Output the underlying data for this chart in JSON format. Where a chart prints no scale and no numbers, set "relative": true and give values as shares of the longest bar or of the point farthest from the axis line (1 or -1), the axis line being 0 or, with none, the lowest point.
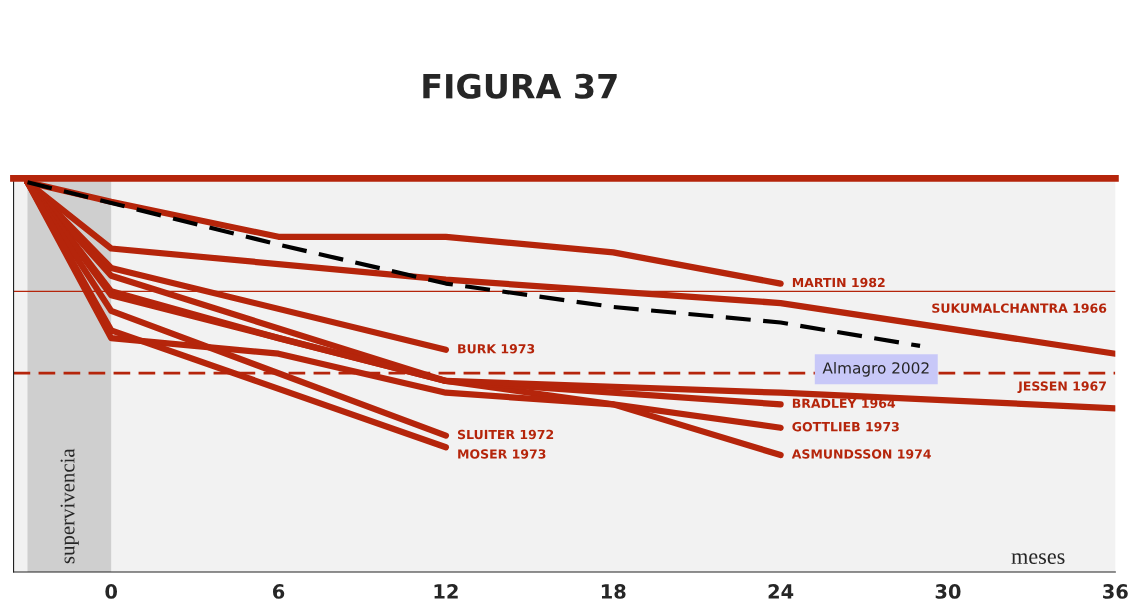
{
  "chart_data": {
    "type": "line",
    "title": "FIGURA 37",
    "xlabel": "meses",
    "relative": true,
    "xlim": [
      -3.5,
      36
    ],
    "xticks": [
      0,
      6,
      12,
      18,
      24,
      30,
      36
    ],
    "grid": false,
    "line_style": "solid",
    "bands": [
      {
        "axis": "x",
        "from": -3,
        "to": 0,
        "label": "supervivencia",
        "color": "#cfcfcf"
      }
    ],
    "ref_lines": [
      {
        "axis": "y",
        "value": 0.72,
        "color": "#b5250b",
        "line_style": "solid"
      },
      {
        "axis": "y",
        "value": 0.51,
        "color": "#b5250b",
        "line_style": "dashed"
      }
    ],
    "series": [
      {
        "name": "MARTIN 1982",
        "color": "#b5250b",
        "x": [
          -3,
          0,
          6,
          12,
          18,
          24
        ],
        "values": [
          1,
          0.95,
          0.86,
          0.86,
          0.82,
          0.74
        ]
      },
      {
        "name": "SUKUMALCHANTRA 1966",
        "color": "#b5250b",
        "x": [
          -3,
          0,
          12,
          24,
          36
        ],
        "values": [
          1,
          0.83,
          0.75,
          0.69,
          0.56
        ]
      },
      {
        "name": "Almagro 2002",
        "color": "#000000",
        "line_style": "dashed",
        "x": [
          -3,
          6,
          12,
          18,
          24,
          29
        ],
        "values": [
          1,
          0.84,
          0.74,
          0.68,
          0.64,
          0.58
        ]
      },
      {
        "name": "BURK 1973",
        "color": "#b5250b",
        "x": [
          -3,
          0,
          12
        ],
        "values": [
          1,
          0.78,
          0.57
        ]
      },
      {
        "name": "GOTTLIEB 1973",
        "color": "#b5250b",
        "x": [
          -3,
          0,
          12,
          24
        ],
        "values": [
          1,
          0.76,
          0.49,
          0.37
        ]
      },
      {
        "name": "BRADLEY 1964",
        "color": "#b5250b",
        "x": [
          -3,
          0,
          6,
          12,
          24
        ],
        "values": [
          1,
          0.72,
          0.6,
          0.49,
          0.43
        ]
      },
      {
        "name": "JESSEN 1967",
        "color": "#b5250b",
        "x": [
          -3,
          0,
          12,
          24,
          36
        ],
        "values": [
          1,
          0.71,
          0.49,
          0.46,
          0.42
        ]
      },
      {
        "name": "ASMUNDSSON 1974",
        "color": "#b5250b",
        "x": [
          -3,
          0,
          6,
          12,
          18,
          24
        ],
        "values": [
          1,
          0.6,
          0.56,
          0.46,
          0.43,
          0.3
        ]
      },
      {
        "name": "SLUITER 1972",
        "color": "#b5250b",
        "x": [
          -3,
          0,
          12
        ],
        "values": [
          1,
          0.67,
          0.35
        ]
      },
      {
        "name": "MOSER 1973",
        "color": "#b5250b",
        "x": [
          -3,
          0,
          12
        ],
        "values": [
          1,
          0.62,
          0.32
        ]
      }
    ]
  }
}
